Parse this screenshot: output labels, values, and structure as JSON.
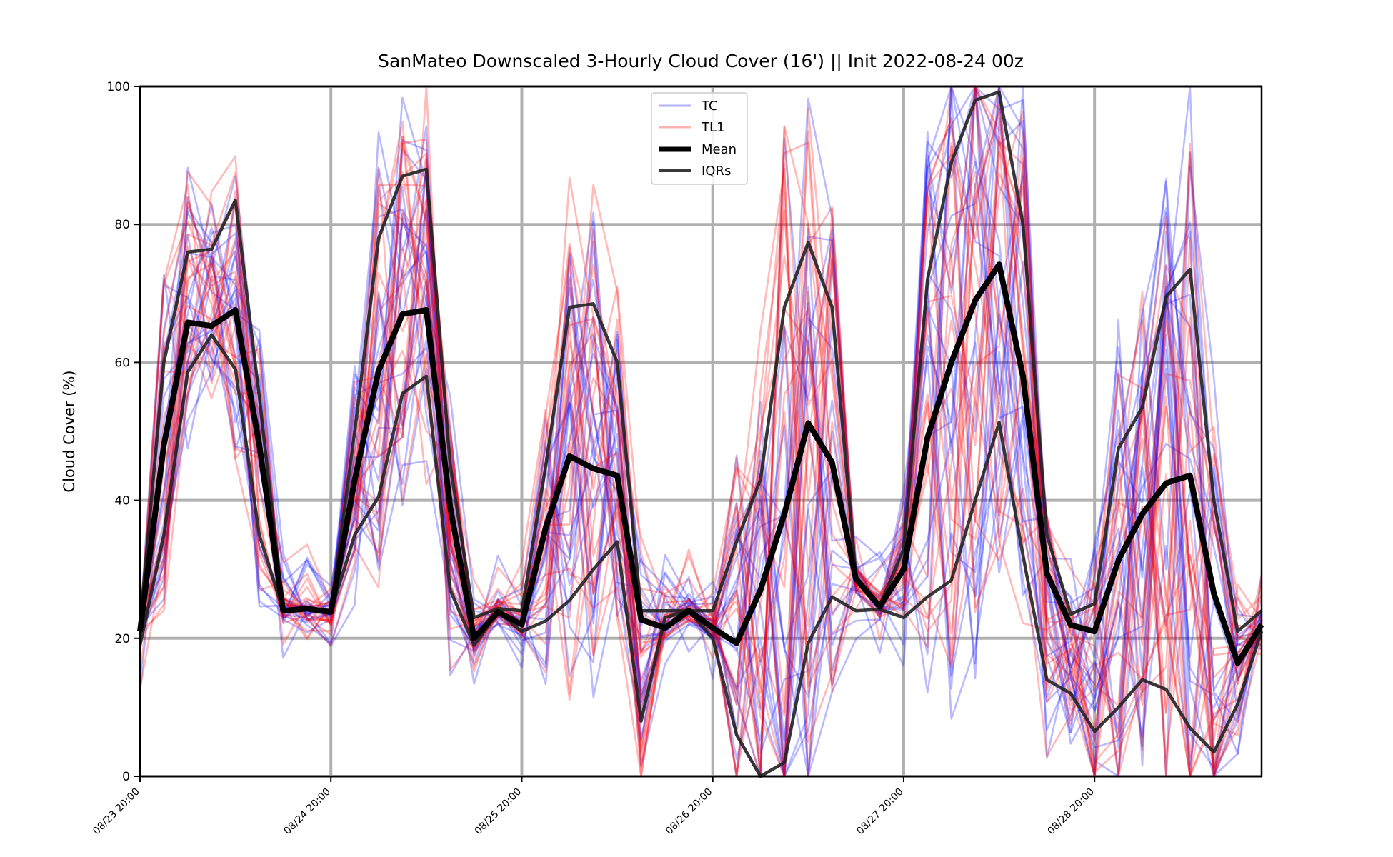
{
  "chart_data": {
    "type": "line",
    "title": "SanMateo Downscaled 3-Hourly Cloud Cover (16') || Init 2022-08-24 00z",
    "xlabel": "",
    "ylabel": "Cloud Cover (%)",
    "ylim": [
      0,
      100
    ],
    "yticks": [
      0,
      20,
      40,
      60,
      80,
      100
    ],
    "xticks": [
      "08/23 20:00",
      "08/24 20:00",
      "08/25 20:00",
      "08/26 20:00",
      "08/27 20:00",
      "08/28 20:00"
    ],
    "x_start": "08/23 20:00",
    "x_step_hours": 3,
    "grid": true,
    "legend": {
      "placement": "top-center",
      "entries": [
        {
          "label": "TC",
          "color": "#0000ff"
        },
        {
          "label": "TL1",
          "color": "#ff0000"
        },
        {
          "label": "Mean",
          "color": "#000000"
        },
        {
          "label": "IQRs",
          "color": "#222222"
        }
      ]
    },
    "colors": {
      "TC": "#0000ff",
      "TL1": "#ff0000",
      "Mean": "#000000",
      "IQRs": "#222222",
      "grid": "#b0b0b0"
    },
    "mean": [
      21,
      48,
      65.8,
      65.3,
      67.6,
      48,
      24,
      24.3,
      23.8,
      43,
      58.8,
      67,
      67.6,
      39,
      20,
      23.8,
      22,
      36,
      46.4,
      44.6,
      43.6,
      22.7,
      21.5,
      24,
      21.5,
      19.3,
      27,
      38,
      51.2,
      45.5,
      28.6,
      24.6,
      30,
      49.1,
      60,
      69,
      74.2,
      58,
      29.4,
      21.9,
      21,
      31.3,
      38,
      42.5,
      43.6,
      26.5,
      16.4,
      22
    ],
    "iqr_upper": [
      22,
      60,
      76,
      76.4,
      83.5,
      55,
      24,
      24.3,
      23.8,
      50,
      78,
      87,
      88,
      45,
      23,
      24.3,
      24,
      45,
      68,
      68.5,
      60,
      24,
      24,
      24,
      24,
      34,
      43,
      68,
      77.4,
      68,
      29,
      24.7,
      33,
      72,
      89,
      98,
      99.2,
      80,
      35,
      23.5,
      25,
      47.5,
      53.5,
      69.5,
      73.5,
      40,
      21,
      24
    ],
    "iqr_lower": [
      19,
      35,
      58.6,
      64,
      59,
      35,
      24,
      24.3,
      23.8,
      35,
      40.5,
      55.5,
      58,
      27,
      19,
      23.8,
      21,
      22.5,
      25.5,
      30,
      34,
      8,
      23,
      24,
      20,
      6,
      0,
      2,
      19.3,
      26,
      24,
      24.2,
      23,
      26,
      28.4,
      40,
      51.3,
      32,
      14,
      12,
      6.5,
      10,
      14,
      12.6,
      7,
      3.5,
      10.5,
      21
    ]
  }
}
